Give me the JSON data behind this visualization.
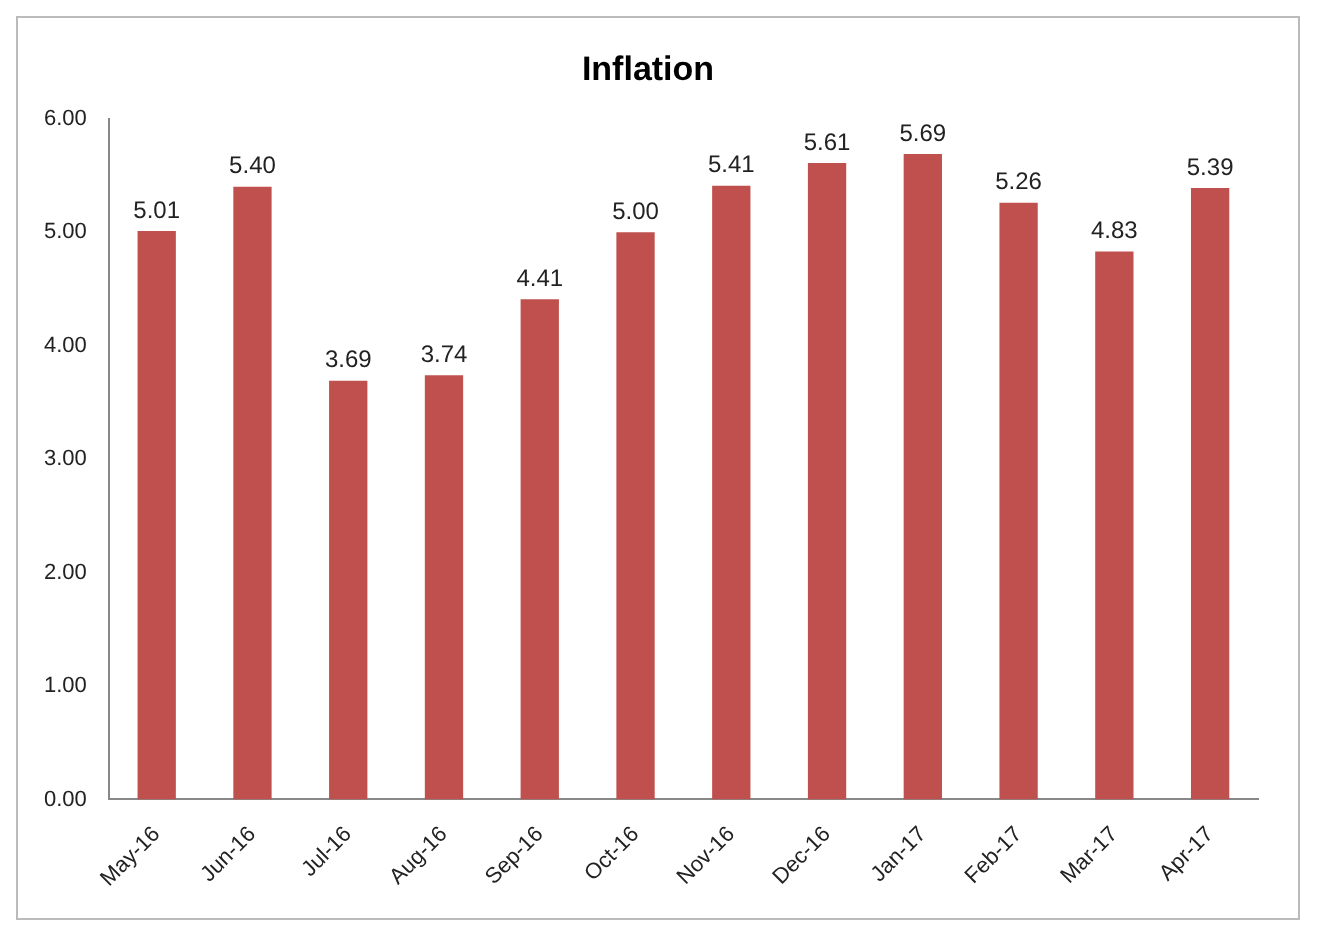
{
  "chart_data": {
    "type": "bar",
    "title": "Inflation",
    "categories": [
      "May-16",
      "Jun-16",
      "Jul-16",
      "Aug-16",
      "Sep-16",
      "Oct-16",
      "Nov-16",
      "Dec-16",
      "Jan-17",
      "Feb-17",
      "Mar-17",
      "Apr-17"
    ],
    "values": [
      5.01,
      5.4,
      3.69,
      3.74,
      4.41,
      5.0,
      5.41,
      5.61,
      5.69,
      5.26,
      4.83,
      5.39
    ],
    "value_labels": [
      "5.01",
      "5.40",
      "3.69",
      "3.74",
      "4.41",
      "5.00",
      "5.41",
      "5.61",
      "5.69",
      "5.26",
      "4.83",
      "5.39"
    ],
    "color": "#c0504d",
    "ylim": [
      0,
      6
    ],
    "yticks": [
      {
        "value": 0,
        "label": "0.00"
      },
      {
        "value": 1,
        "label": "1.00"
      },
      {
        "value": 2,
        "label": "2.00"
      },
      {
        "value": 3,
        "label": "3.00"
      },
      {
        "value": 4,
        "label": "4.00"
      },
      {
        "value": 5,
        "label": "5.00"
      },
      {
        "value": 6,
        "label": "6.00"
      }
    ],
    "grid": false,
    "legend": false
  }
}
